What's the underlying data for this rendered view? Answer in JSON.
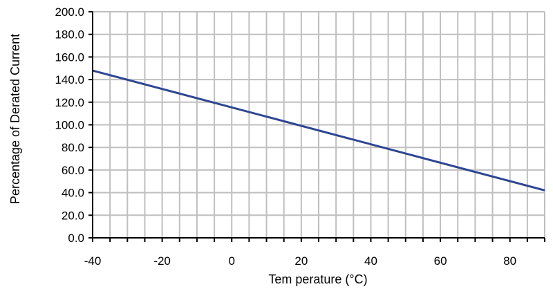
{
  "chart_data": {
    "type": "line",
    "xlabel": "Tem perature (°C)",
    "ylabel": "Percentage of Derated Current",
    "xlim": [
      -40,
      90
    ],
    "ylim": [
      0,
      200
    ],
    "x_ticks": [
      -40,
      -20,
      0,
      20,
      40,
      60,
      80
    ],
    "x_tick_labels": [
      "-40",
      "-20",
      "0",
      "20",
      "40",
      "60",
      "80"
    ],
    "y_ticks": [
      0,
      20,
      40,
      60,
      80,
      100,
      120,
      140,
      160,
      180,
      200
    ],
    "y_tick_labels": [
      "0.0",
      "20.0",
      "40.0",
      "60.0",
      "80.0",
      "100.0",
      "120.0",
      "140.0",
      "160.0",
      "180.0",
      "200.0"
    ],
    "x_grid_step": 5,
    "y_grid_step": 20,
    "grid": true,
    "legend": "none",
    "series": [
      {
        "x": [
          -40,
          90
        ],
        "y": [
          148.0,
          42.0
        ],
        "color": "#2e4593"
      }
    ],
    "colors": {
      "grid": "#bfbfbf",
      "axis": "#000000",
      "line": "#2e4593"
    }
  }
}
